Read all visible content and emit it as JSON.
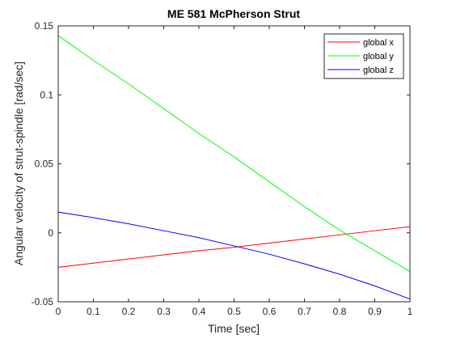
{
  "chart_data": {
    "type": "line",
    "title": "ME 581 McPherson Strut",
    "xlabel": "Time [sec]",
    "ylabel": "Angular velocity of strut-spindle [rad/sec]",
    "xlim": [
      0,
      1
    ],
    "ylim": [
      -0.05,
      0.15
    ],
    "xticks": [
      0,
      0.1,
      0.2,
      0.3,
      0.4,
      0.5,
      0.6,
      0.7,
      0.8,
      0.9,
      1
    ],
    "xtick_labels": [
      "0",
      "0.1",
      "0.2",
      "0.3",
      "0.4",
      "0.5",
      "0.6",
      "0.7",
      "0.8",
      "0.9",
      "1"
    ],
    "yticks": [
      -0.05,
      0,
      0.05,
      0.1,
      0.15
    ],
    "ytick_labels": [
      "-0.05",
      "0",
      "0.05",
      "0.1",
      "0.15"
    ],
    "grid": false,
    "legend_position": "top-right",
    "x": [
      0,
      0.1,
      0.2,
      0.3,
      0.4,
      0.5,
      0.6,
      0.7,
      0.8,
      0.9,
      1.0
    ],
    "series": [
      {
        "name": "global x",
        "color": "#ff0000",
        "values": [
          -0.025,
          -0.022,
          -0.019,
          -0.016,
          -0.013,
          -0.0105,
          -0.0075,
          -0.0045,
          -0.0015,
          0.0015,
          0.0045
        ]
      },
      {
        "name": "global y",
        "color": "#00ff00",
        "values": [
          0.143,
          0.125,
          0.108,
          0.09,
          0.072,
          0.055,
          0.037,
          0.019,
          0.002,
          -0.013,
          -0.028
        ]
      },
      {
        "name": "global z",
        "color": "#0000ff",
        "values": [
          0.015,
          0.011,
          0.0065,
          0.0015,
          -0.0035,
          -0.0095,
          -0.0155,
          -0.0225,
          -0.03,
          -0.0385,
          -0.048
        ]
      }
    ]
  }
}
